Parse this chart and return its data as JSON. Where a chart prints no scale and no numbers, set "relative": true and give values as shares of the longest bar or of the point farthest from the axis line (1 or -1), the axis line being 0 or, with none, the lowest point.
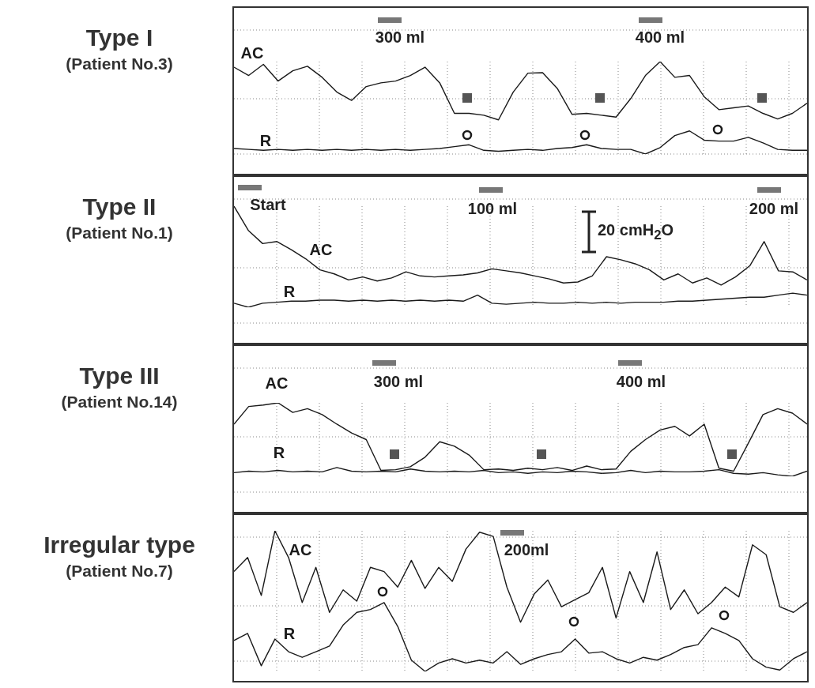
{
  "chart_data": [
    {
      "type": "line",
      "title": "Type I",
      "subtitle": "(Patient No.3)",
      "relative": true,
      "grid": true,
      "annotations": [
        "300 ml",
        "400 ml"
      ],
      "categories": [
        null,
        null,
        null,
        null,
        null,
        null,
        null,
        null,
        null,
        null,
        null,
        null,
        null,
        null,
        null,
        null,
        null,
        null,
        null,
        null,
        null,
        null,
        null,
        null,
        null,
        null,
        null,
        null,
        null,
        null,
        null,
        null,
        null,
        null,
        null,
        null,
        null,
        null,
        null,
        null
      ],
      "series": [
        {
          "name": "AC",
          "color": "#1a1a1a",
          "values": [
            0.94,
            0.85,
            0.97,
            0.79,
            0.9,
            0.95,
            0.83,
            0.67,
            0.58,
            0.73,
            0.77,
            0.79,
            0.85,
            0.94,
            0.77,
            0.44,
            0.44,
            0.42,
            0.37,
            0.67,
            0.875,
            0.88,
            0.71,
            0.43,
            0.44,
            0.42,
            0.4,
            0.6,
            0.85,
            1.0,
            0.83,
            0.85,
            0.62,
            0.48,
            0.5,
            0.52,
            0.44,
            0.38,
            0.44,
            0.55
          ]
        },
        {
          "name": "R",
          "color": "#1a1a1a",
          "values": [
            0.06,
            0.05,
            0.04,
            0.05,
            0.04,
            0.05,
            0.04,
            0.05,
            0.04,
            0.05,
            0.04,
            0.05,
            0.04,
            0.05,
            0.06,
            0.08,
            0.1,
            0.04,
            0.03,
            0.04,
            0.05,
            0.04,
            0.06,
            0.07,
            0.1,
            0.06,
            0.05,
            0.05,
            0.0,
            0.07,
            0.2,
            0.25,
            0.15,
            0.14,
            0.14,
            0.18,
            0.12,
            0.05,
            0.04,
            0.04
          ]
        }
      ]
    },
    {
      "type": "line",
      "title": "Type II",
      "subtitle": "(Patient No.1)",
      "relative": true,
      "grid": true,
      "annotations": [
        "Start",
        "100 ml",
        "200 ml",
        "20 cmH$_{2}$O"
      ],
      "categories": [
        null,
        null,
        null,
        null,
        null,
        null,
        null,
        null,
        null,
        null,
        null,
        null,
        null,
        null,
        null,
        null,
        null,
        null,
        null,
        null,
        null,
        null,
        null,
        null,
        null,
        null,
        null,
        null,
        null,
        null,
        null,
        null,
        null,
        null,
        null,
        null,
        null,
        null,
        null,
        null,
        null
      ],
      "series": [
        {
          "name": "AC",
          "color": "#1a1a1a",
          "values": [
            1.0,
            0.76,
            0.63,
            0.65,
            0.57,
            0.48,
            0.37,
            0.33,
            0.27,
            0.3,
            0.26,
            0.29,
            0.35,
            0.31,
            0.3,
            0.31,
            0.32,
            0.34,
            0.38,
            0.36,
            0.34,
            0.31,
            0.28,
            0.24,
            0.25,
            0.31,
            0.5,
            0.47,
            0.43,
            0.37,
            0.27,
            0.33,
            0.24,
            0.29,
            0.22,
            0.3,
            0.41,
            0.65,
            0.36,
            0.35,
            0.27
          ]
        },
        {
          "name": "R",
          "color": "#1a1a1a",
          "values": [
            0.04,
            0.0,
            0.04,
            0.05,
            0.06,
            0.06,
            0.07,
            0.07,
            0.06,
            0.07,
            0.06,
            0.07,
            0.06,
            0.07,
            0.06,
            0.07,
            0.06,
            0.12,
            0.04,
            0.03,
            0.04,
            0.05,
            0.04,
            0.04,
            0.05,
            0.04,
            0.05,
            0.04,
            0.05,
            0.05,
            0.05,
            0.06,
            0.06,
            0.07,
            0.08,
            0.09,
            0.1,
            0.1,
            0.12,
            0.14,
            0.12
          ]
        }
      ]
    },
    {
      "type": "line",
      "title": "Type III",
      "subtitle": "(Patient No.14)",
      "relative": true,
      "grid": true,
      "annotations": [
        "300 ml",
        "400 ml"
      ],
      "categories": [
        null,
        null,
        null,
        null,
        null,
        null,
        null,
        null,
        null,
        null,
        null,
        null,
        null,
        null,
        null,
        null,
        null,
        null,
        null,
        null,
        null,
        null,
        null,
        null,
        null,
        null,
        null,
        null,
        null,
        null,
        null,
        null,
        null,
        null,
        null,
        null,
        null,
        null,
        null,
        null
      ],
      "series": [
        {
          "name": "AC",
          "color": "#1a1a1a",
          "values": [
            0.71,
            0.95,
            0.97,
            1.0,
            0.87,
            0.92,
            0.84,
            0.71,
            0.59,
            0.5,
            0.08,
            0.09,
            0.13,
            0.26,
            0.47,
            0.41,
            0.29,
            0.09,
            0.1,
            0.08,
            0.11,
            0.09,
            0.12,
            0.08,
            0.14,
            0.09,
            0.1,
            0.34,
            0.5,
            0.63,
            0.68,
            0.55,
            0.71,
            0.11,
            0.07,
            0.45,
            0.84,
            0.92,
            0.86,
            0.71
          ]
        },
        {
          "name": "R",
          "color": "#1a1a1a",
          "values": [
            0.05,
            0.07,
            0.06,
            0.08,
            0.06,
            0.07,
            0.06,
            0.12,
            0.07,
            0.06,
            0.07,
            0.06,
            0.1,
            0.07,
            0.06,
            0.07,
            0.06,
            0.08,
            0.05,
            0.06,
            0.04,
            0.06,
            0.05,
            0.07,
            0.06,
            0.04,
            0.05,
            0.08,
            0.05,
            0.07,
            0.06,
            0.06,
            0.07,
            0.09,
            0.04,
            0.03,
            0.05,
            0.02,
            0.0,
            0.07
          ]
        }
      ]
    },
    {
      "type": "line",
      "title": "Irregular type",
      "subtitle": "(Patient No.7)",
      "relative": true,
      "grid": true,
      "annotations": [
        "200ml"
      ],
      "categories": [
        null,
        null,
        null,
        null,
        null,
        null,
        null,
        null,
        null,
        null,
        null,
        null,
        null,
        null,
        null,
        null,
        null,
        null,
        null,
        null,
        null,
        null,
        null,
        null,
        null,
        null,
        null,
        null,
        null,
        null,
        null,
        null,
        null,
        null,
        null,
        null,
        null,
        null,
        null,
        null,
        null,
        null,
        null
      ],
      "series": [
        {
          "name": "AC",
          "color": "#1a1a1a",
          "values": [
            0.71,
            0.81,
            0.54,
            1.0,
            0.81,
            0.49,
            0.74,
            0.42,
            0.58,
            0.5,
            0.74,
            0.71,
            0.6,
            0.79,
            0.59,
            0.74,
            0.64,
            0.87,
            0.99,
            0.96,
            0.6,
            0.35,
            0.55,
            0.65,
            0.46,
            0.51,
            0.56,
            0.74,
            0.38,
            0.71,
            0.49,
            0.85,
            0.44,
            0.58,
            0.41,
            0.49,
            0.6,
            0.53,
            0.9,
            0.83,
            0.46,
            0.42,
            0.49
          ]
        },
        {
          "name": "R",
          "color": "#1a1a1a",
          "values": [
            0.22,
            0.27,
            0.04,
            0.23,
            0.14,
            0.1,
            0.14,
            0.18,
            0.33,
            0.42,
            0.44,
            0.49,
            0.32,
            0.08,
            0.0,
            0.06,
            0.09,
            0.06,
            0.08,
            0.06,
            0.14,
            0.05,
            0.09,
            0.12,
            0.14,
            0.23,
            0.13,
            0.14,
            0.09,
            0.06,
            0.1,
            0.08,
            0.12,
            0.17,
            0.19,
            0.31,
            0.27,
            0.22,
            0.09,
            0.03,
            0.01,
            0.09,
            0.14
          ]
        }
      ]
    }
  ]
}
